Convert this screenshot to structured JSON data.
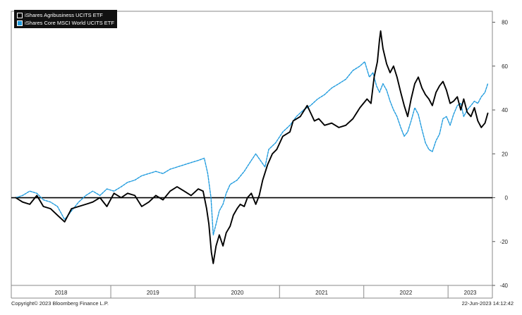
{
  "chart_data": {
    "type": "line",
    "title": "",
    "xlabel": "",
    "ylabel": "",
    "x_labels": [
      "2018",
      "2019",
      "2020",
      "2021",
      "2022",
      "2023"
    ],
    "y_ticks": [
      80,
      60,
      40,
      20,
      0,
      -20,
      -40
    ],
    "ylim": [
      -40,
      85
    ],
    "grid": false,
    "legend_position": "top-left",
    "series": [
      {
        "name": "iShares Agribusiness UCITS ETF",
        "color": "#000000",
        "style": "solid",
        "points": [
          [
            "2017-11-15",
            0
          ],
          [
            "2017-12-15",
            -2
          ],
          [
            "2018-01-15",
            -3
          ],
          [
            "2018-02-15",
            1
          ],
          [
            "2018-03-15",
            -4
          ],
          [
            "2018-04-15",
            -5
          ],
          [
            "2018-05-15",
            -8
          ],
          [
            "2018-06-15",
            -11
          ],
          [
            "2018-07-15",
            -5
          ],
          [
            "2018-08-15",
            -4
          ],
          [
            "2018-09-15",
            -3
          ],
          [
            "2018-10-15",
            -2
          ],
          [
            "2018-11-15",
            0
          ],
          [
            "2018-12-15",
            -4
          ],
          [
            "2019-01-15",
            2
          ],
          [
            "2019-02-15",
            0
          ],
          [
            "2019-03-15",
            2
          ],
          [
            "2019-04-15",
            1
          ],
          [
            "2019-05-15",
            -4
          ],
          [
            "2019-06-15",
            -2
          ],
          [
            "2019-07-15",
            1
          ],
          [
            "2019-08-15",
            -1
          ],
          [
            "2019-09-15",
            3
          ],
          [
            "2019-10-15",
            5
          ],
          [
            "2019-11-15",
            3
          ],
          [
            "2019-12-15",
            1
          ],
          [
            "2020-01-15",
            4
          ],
          [
            "2020-02-05",
            3
          ],
          [
            "2020-02-20",
            -5
          ],
          [
            "2020-03-01",
            -12
          ],
          [
            "2020-03-12",
            -25
          ],
          [
            "2020-03-20",
            -30
          ],
          [
            "2020-04-01",
            -22
          ],
          [
            "2020-04-15",
            -17
          ],
          [
            "2020-05-01",
            -22
          ],
          [
            "2020-05-15",
            -16
          ],
          [
            "2020-06-01",
            -13
          ],
          [
            "2020-06-15",
            -8
          ],
          [
            "2020-07-01",
            -5
          ],
          [
            "2020-07-15",
            -3
          ],
          [
            "2020-08-01",
            -4
          ],
          [
            "2020-08-15",
            0
          ],
          [
            "2020-09-01",
            2
          ],
          [
            "2020-09-20",
            -3
          ],
          [
            "2020-10-05",
            1
          ],
          [
            "2020-10-20",
            8
          ],
          [
            "2020-11-10",
            15
          ],
          [
            "2020-12-01",
            20
          ],
          [
            "2020-12-20",
            22
          ],
          [
            "2021-01-15",
            28
          ],
          [
            "2021-02-15",
            30
          ],
          [
            "2021-03-01",
            35
          ],
          [
            "2021-04-01",
            37
          ],
          [
            "2021-05-01",
            42
          ],
          [
            "2021-06-01",
            35
          ],
          [
            "2021-06-20",
            36
          ],
          [
            "2021-07-15",
            33
          ],
          [
            "2021-08-15",
            34
          ],
          [
            "2021-09-15",
            32
          ],
          [
            "2021-10-15",
            33
          ],
          [
            "2021-11-15",
            36
          ],
          [
            "2021-12-15",
            41
          ],
          [
            "2022-01-15",
            45
          ],
          [
            "2022-02-01",
            43
          ],
          [
            "2022-02-15",
            55
          ],
          [
            "2022-03-01",
            62
          ],
          [
            "2022-03-10",
            72
          ],
          [
            "2022-03-15",
            76
          ],
          [
            "2022-03-25",
            68
          ],
          [
            "2022-04-10",
            61
          ],
          [
            "2022-04-25",
            57
          ],
          [
            "2022-05-10",
            60
          ],
          [
            "2022-05-25",
            55
          ],
          [
            "2022-06-10",
            48
          ],
          [
            "2022-06-25",
            42
          ],
          [
            "2022-07-10",
            37
          ],
          [
            "2022-07-25",
            45
          ],
          [
            "2022-08-10",
            52
          ],
          [
            "2022-08-25",
            55
          ],
          [
            "2022-09-10",
            50
          ],
          [
            "2022-09-25",
            47
          ],
          [
            "2022-10-10",
            45
          ],
          [
            "2022-10-25",
            42
          ],
          [
            "2022-11-10",
            48
          ],
          [
            "2022-11-25",
            51
          ],
          [
            "2022-12-10",
            53
          ],
          [
            "2022-12-25",
            49
          ],
          [
            "2023-01-10",
            43
          ],
          [
            "2023-01-25",
            44
          ],
          [
            "2023-02-10",
            46
          ],
          [
            "2023-02-25",
            40
          ],
          [
            "2023-03-10",
            45
          ],
          [
            "2023-03-25",
            39
          ],
          [
            "2023-04-10",
            37
          ],
          [
            "2023-04-25",
            41
          ],
          [
            "2023-05-10",
            35
          ],
          [
            "2023-05-25",
            32
          ],
          [
            "2023-06-10",
            34
          ],
          [
            "2023-06-22",
            38.5
          ]
        ]
      },
      {
        "name": "iShares Core MSCI World UCITS ETF",
        "color": "#1f9bde",
        "style": "dashed",
        "points": [
          [
            "2017-11-15",
            0
          ],
          [
            "2017-12-15",
            1
          ],
          [
            "2018-01-15",
            3
          ],
          [
            "2018-02-15",
            2
          ],
          [
            "2018-03-15",
            -1
          ],
          [
            "2018-04-15",
            -2
          ],
          [
            "2018-05-15",
            -4
          ],
          [
            "2018-06-15",
            -10
          ],
          [
            "2018-07-15",
            -6
          ],
          [
            "2018-08-15",
            -2
          ],
          [
            "2018-09-15",
            1
          ],
          [
            "2018-10-15",
            3
          ],
          [
            "2018-11-15",
            1
          ],
          [
            "2018-12-15",
            4
          ],
          [
            "2019-01-15",
            3
          ],
          [
            "2019-02-15",
            5
          ],
          [
            "2019-03-15",
            7
          ],
          [
            "2019-04-15",
            8
          ],
          [
            "2019-05-15",
            10
          ],
          [
            "2019-06-15",
            11
          ],
          [
            "2019-07-15",
            12
          ],
          [
            "2019-08-15",
            11
          ],
          [
            "2019-09-15",
            13
          ],
          [
            "2019-10-15",
            14
          ],
          [
            "2019-11-15",
            15
          ],
          [
            "2019-12-15",
            16
          ],
          [
            "2020-01-15",
            17
          ],
          [
            "2020-02-10",
            18
          ],
          [
            "2020-02-25",
            11
          ],
          [
            "2020-03-10",
            0
          ],
          [
            "2020-03-20",
            -17
          ],
          [
            "2020-04-01",
            -12
          ],
          [
            "2020-04-15",
            -6
          ],
          [
            "2020-05-01",
            -3
          ],
          [
            "2020-05-15",
            2
          ],
          [
            "2020-06-01",
            6
          ],
          [
            "2020-07-01",
            8
          ],
          [
            "2020-08-01",
            12
          ],
          [
            "2020-09-01",
            17
          ],
          [
            "2020-09-20",
            20
          ],
          [
            "2020-10-10",
            17
          ],
          [
            "2020-10-30",
            14
          ],
          [
            "2020-11-15",
            22
          ],
          [
            "2020-12-15",
            25
          ],
          [
            "2021-01-15",
            30
          ],
          [
            "2021-02-15",
            33
          ],
          [
            "2021-03-15",
            37
          ],
          [
            "2021-04-15",
            40
          ],
          [
            "2021-05-15",
            42
          ],
          [
            "2021-06-15",
            45
          ],
          [
            "2021-07-15",
            47
          ],
          [
            "2021-08-15",
            50
          ],
          [
            "2021-09-15",
            52
          ],
          [
            "2021-10-15",
            54
          ],
          [
            "2021-11-15",
            58
          ],
          [
            "2021-12-15",
            60
          ],
          [
            "2022-01-05",
            62
          ],
          [
            "2022-01-25",
            55
          ],
          [
            "2022-02-10",
            57
          ],
          [
            "2022-02-25",
            51
          ],
          [
            "2022-03-10",
            48
          ],
          [
            "2022-03-25",
            52
          ],
          [
            "2022-04-10",
            49
          ],
          [
            "2022-04-25",
            44
          ],
          [
            "2022-05-10",
            40
          ],
          [
            "2022-05-25",
            37
          ],
          [
            "2022-06-10",
            32
          ],
          [
            "2022-06-25",
            28
          ],
          [
            "2022-07-10",
            30
          ],
          [
            "2022-07-25",
            35
          ],
          [
            "2022-08-10",
            41
          ],
          [
            "2022-08-25",
            38
          ],
          [
            "2022-09-10",
            31
          ],
          [
            "2022-09-25",
            25
          ],
          [
            "2022-10-10",
            22
          ],
          [
            "2022-10-25",
            21
          ],
          [
            "2022-11-10",
            26
          ],
          [
            "2022-11-25",
            29
          ],
          [
            "2022-12-10",
            36
          ],
          [
            "2022-12-25",
            37
          ],
          [
            "2023-01-10",
            33
          ],
          [
            "2023-01-25",
            38
          ],
          [
            "2023-02-10",
            42
          ],
          [
            "2023-02-25",
            43
          ],
          [
            "2023-03-10",
            37
          ],
          [
            "2023-03-25",
            40
          ],
          [
            "2023-04-10",
            42
          ],
          [
            "2023-04-25",
            44
          ],
          [
            "2023-05-10",
            43
          ],
          [
            "2023-05-25",
            46
          ],
          [
            "2023-06-10",
            48
          ],
          [
            "2023-06-22",
            52
          ]
        ]
      }
    ]
  },
  "legend": {
    "items": [
      {
        "label": "iShares Agribusiness UCITS ETF",
        "color": "#000000"
      },
      {
        "label": "iShares Core MSCI World UCITS ETF",
        "color": "#1f9bde"
      }
    ]
  },
  "footer": {
    "copyright": "Copyright© 2023 Bloomberg Finance L.P.",
    "timestamp": "22-Jun-2023 14:12:42"
  }
}
